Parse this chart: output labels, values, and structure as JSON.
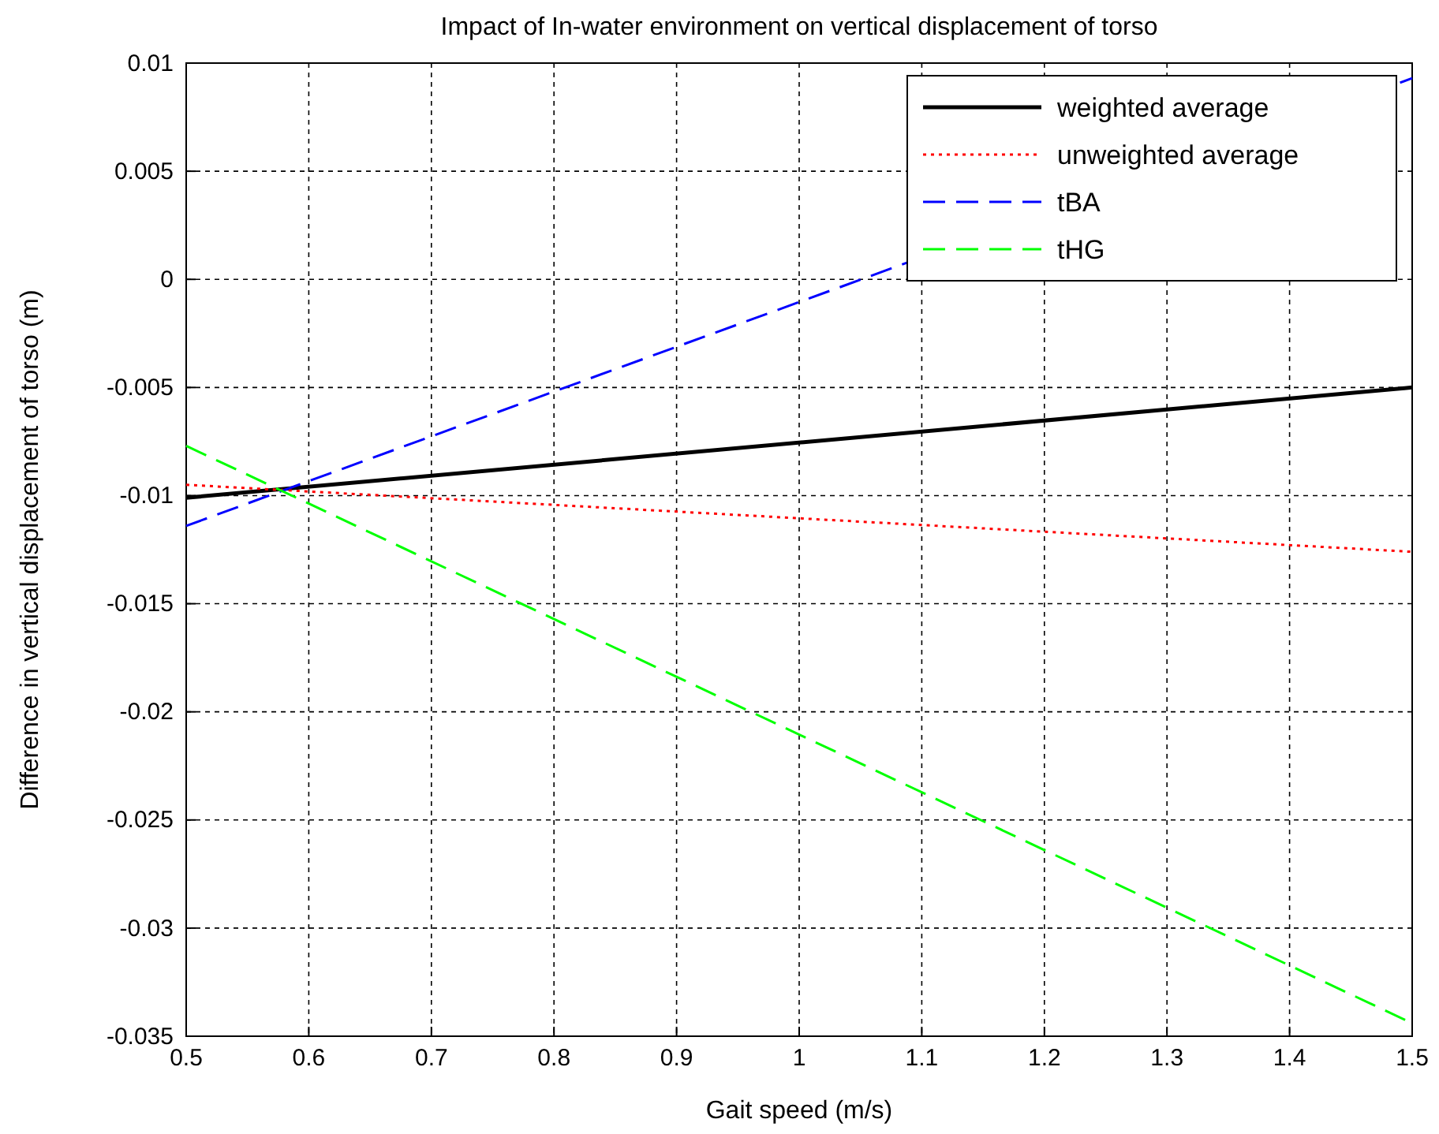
{
  "chart_data": {
    "type": "line",
    "title": "Impact of In-water environment on vertical displacement of torso",
    "xlabel": "Gait speed (m/s)",
    "ylabel": "Difference in vertical displacement of torso (m)",
    "x": [
      0.5,
      1.5
    ],
    "series": [
      {
        "name": "weighted average",
        "color": "#000000",
        "values": [
          -0.0101,
          -0.005
        ],
        "line_style": "solid"
      },
      {
        "name": "unweighted average",
        "color": "#ff0000",
        "values": [
          -0.0095,
          -0.0126
        ],
        "line_style": "dotted"
      },
      {
        "name": "tBA",
        "color": "#0000ff",
        "values": [
          -0.0114,
          0.0093
        ],
        "line_style": "dashed"
      },
      {
        "name": "tHG",
        "color": "#00ff00",
        "values": [
          -0.0077,
          -0.0344
        ],
        "line_style": "dashed"
      }
    ],
    "xlim": [
      0.5,
      1.5
    ],
    "xticks": [
      0.5,
      0.6,
      0.7,
      0.8,
      0.9,
      1,
      1.1,
      1.2,
      1.3,
      1.4,
      1.5
    ],
    "ylim": [
      -0.035,
      0.01
    ],
    "yticks": [
      -0.035,
      -0.03,
      -0.025,
      -0.02,
      -0.015,
      -0.01,
      -0.005,
      0,
      0.005,
      0.01
    ],
    "grid": true,
    "legend": "top right"
  }
}
